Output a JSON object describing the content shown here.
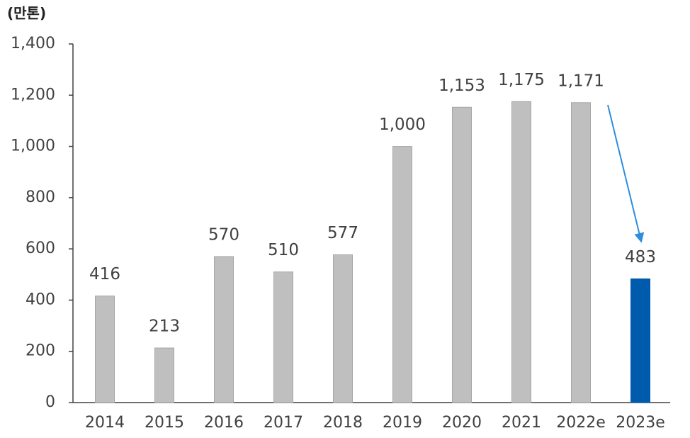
{
  "chart_data": {
    "type": "bar",
    "y_label": "(만톤)",
    "categories": [
      "2014",
      "2015",
      "2016",
      "2017",
      "2018",
      "2019",
      "2020",
      "2021",
      "2022e",
      "2023e"
    ],
    "values": [
      416,
      213,
      570,
      510,
      577,
      1000,
      1153,
      1175,
      1171,
      483
    ],
    "value_labels": [
      "416",
      "213",
      "570",
      "510",
      "577",
      "1,000",
      "1,153",
      "1,175",
      "1,171",
      "483"
    ],
    "colors": [
      "#bfbfbf",
      "#bfbfbf",
      "#bfbfbf",
      "#bfbfbf",
      "#bfbfbf",
      "#bfbfbf",
      "#bfbfbf",
      "#bfbfbf",
      "#bfbfbf",
      "#005bac"
    ],
    "ylim": [
      0,
      1400
    ],
    "yticks": [
      0,
      200,
      400,
      600,
      800,
      {
        "value": 1000,
        "label": "1,000"
      },
      {
        "value": 1200,
        "label": "1,200"
      },
      {
        "value": 1400,
        "label": "1,400"
      }
    ],
    "grid": false
  }
}
